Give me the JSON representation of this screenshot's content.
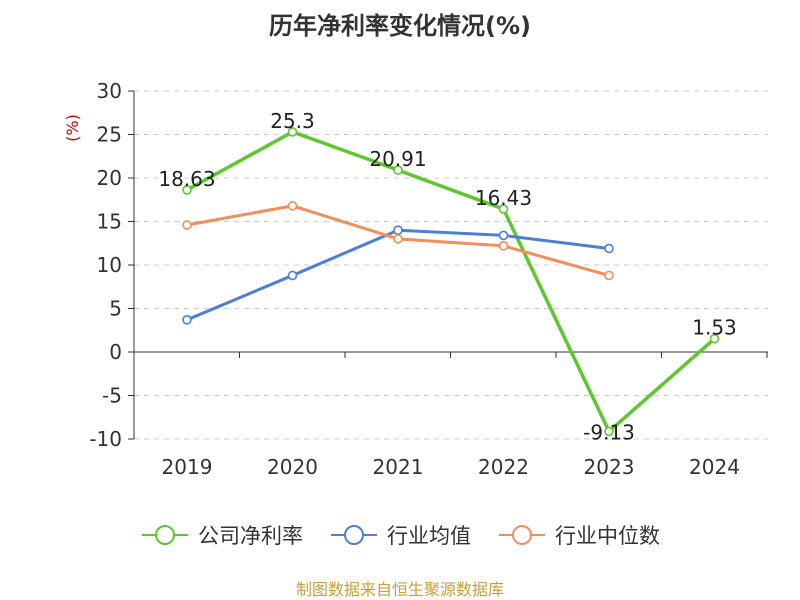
{
  "chart_data": {
    "type": "line",
    "title": "历年净利率变化情况(%)",
    "ylabel": "(%)",
    "xlabel": "",
    "categories": [
      "2019",
      "2020",
      "2021",
      "2022",
      "2023",
      "2024"
    ],
    "ylim": [
      -10,
      30
    ],
    "yticks": [
      30,
      25,
      20,
      15,
      10,
      5,
      0,
      -5,
      -10
    ],
    "grid": "horizontal dashed",
    "legend_position": "bottom",
    "series": [
      {
        "name": "公司净利率",
        "color": "#5cc82e",
        "values": [
          18.63,
          25.3,
          20.91,
          16.43,
          -9.13,
          1.53
        ],
        "labels": [
          "18.63",
          "25.3",
          "20.91",
          "16.43",
          "-9.13",
          "1.53"
        ]
      },
      {
        "name": "行业均值",
        "color": "#4d7fd6",
        "values": [
          3.7,
          8.8,
          14.0,
          13.4,
          11.9,
          null
        ]
      },
      {
        "name": "行业中位数",
        "color": "#f28e5c",
        "values": [
          14.6,
          16.8,
          13.0,
          12.2,
          8.8,
          null
        ]
      }
    ]
  },
  "source": "制图数据来自恒生聚源数据库"
}
